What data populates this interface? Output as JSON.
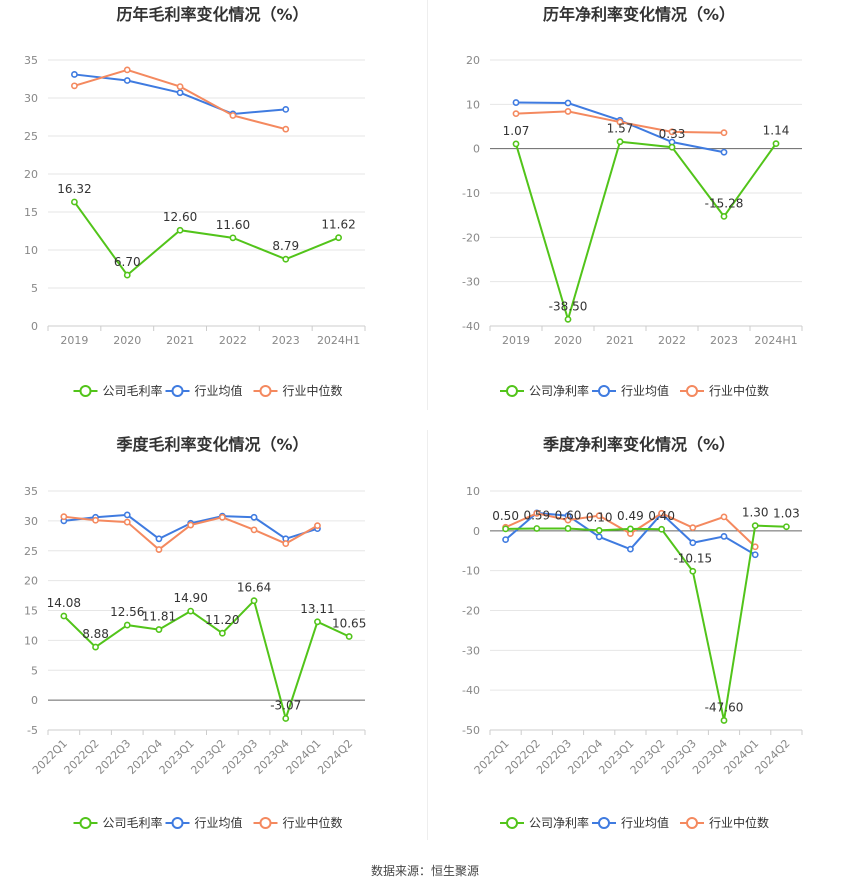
{
  "colors": {
    "company": "#52c41a",
    "industry_avg": "#3f7be0",
    "industry_median": "#f4895f",
    "grid": "#e6e6e6",
    "axis_text": "#888888",
    "title_text": "#333333",
    "label_text": "#333333"
  },
  "footer": {
    "source": "数据来源：恒生聚源"
  },
  "chart_data": [
    {
      "id": "annual-gross",
      "type": "line",
      "title": "历年毛利率变化情况（%）",
      "categories": [
        "2019",
        "2020",
        "2021",
        "2022",
        "2023",
        "2024H1"
      ],
      "ylim": [
        0,
        35
      ],
      "yticks": [
        0,
        5,
        10,
        15,
        20,
        25,
        30,
        35
      ],
      "rotate_xticks": false,
      "series": [
        {
          "name": "公司毛利率",
          "key": "company",
          "values": [
            16.32,
            6.7,
            12.6,
            11.6,
            8.79,
            11.62
          ],
          "labels": [
            "16.32",
            "6.70",
            "12.60",
            "11.60",
            "8.79",
            "11.62"
          ]
        },
        {
          "name": "行业均值",
          "key": "industry_avg",
          "values": [
            33.1,
            32.3,
            30.7,
            27.9,
            28.5,
            null
          ]
        },
        {
          "name": "行业中位数",
          "key": "industry_median",
          "values": [
            31.6,
            33.7,
            31.5,
            27.7,
            25.9,
            null
          ]
        }
      ],
      "legend": [
        "公司毛利率",
        "行业均值",
        "行业中位数"
      ],
      "legend_position": "bottom"
    },
    {
      "id": "annual-net",
      "type": "line",
      "title": "历年净利率变化情况（%）",
      "categories": [
        "2019",
        "2020",
        "2021",
        "2022",
        "2023",
        "2024H1"
      ],
      "ylim": [
        -40,
        20
      ],
      "yticks": [
        -40,
        -30,
        -20,
        -10,
        0,
        10,
        20
      ],
      "rotate_xticks": false,
      "series": [
        {
          "name": "公司净利率",
          "key": "company",
          "values": [
            1.07,
            -38.5,
            1.57,
            0.33,
            -15.28,
            1.14
          ],
          "labels": [
            "1.07",
            "-38.50",
            "1.57",
            "0.33",
            "-15.28",
            "1.14"
          ]
        },
        {
          "name": "行业均值",
          "key": "industry_avg",
          "values": [
            10.4,
            10.3,
            6.4,
            1.5,
            -0.8,
            null
          ]
        },
        {
          "name": "行业中位数",
          "key": "industry_median",
          "values": [
            7.9,
            8.4,
            6.0,
            3.8,
            3.6,
            null
          ]
        }
      ],
      "legend": [
        "公司净利率",
        "行业均值",
        "行业中位数"
      ],
      "legend_position": "bottom"
    },
    {
      "id": "quarterly-gross",
      "type": "line",
      "title": "季度毛利率变化情况（%）",
      "categories": [
        "2022Q1",
        "2022Q2",
        "2022Q3",
        "2022Q4",
        "2023Q1",
        "2023Q2",
        "2023Q3",
        "2023Q4",
        "2024Q1",
        "2024Q2"
      ],
      "ylim": [
        -5,
        35
      ],
      "yticks": [
        -5,
        0,
        5,
        10,
        15,
        20,
        25,
        30,
        35
      ],
      "rotate_xticks": true,
      "series": [
        {
          "name": "公司毛利率",
          "key": "company",
          "values": [
            14.08,
            8.88,
            12.56,
            11.81,
            14.9,
            11.2,
            16.64,
            -3.07,
            13.11,
            10.65
          ],
          "labels": [
            "14.08",
            "8.88",
            "12.56",
            "11.81",
            "14.90",
            "11.20",
            "16.64",
            "-3.07",
            "13.11",
            "10.65"
          ]
        },
        {
          "name": "行业均值",
          "key": "industry_avg",
          "values": [
            30.0,
            30.6,
            31.0,
            27.0,
            29.6,
            30.8,
            30.6,
            27.0,
            28.7,
            null
          ]
        },
        {
          "name": "行业中位数",
          "key": "industry_median",
          "values": [
            30.7,
            30.1,
            29.8,
            25.2,
            29.3,
            30.6,
            28.5,
            26.2,
            29.2,
            null
          ]
        }
      ],
      "legend": [
        "公司毛利率",
        "行业均值",
        "行业中位数"
      ],
      "legend_position": "bottom"
    },
    {
      "id": "quarterly-net",
      "type": "line",
      "title": "季度净利率变化情况（%）",
      "categories": [
        "2022Q1",
        "2022Q2",
        "2022Q3",
        "2022Q4",
        "2023Q1",
        "2023Q2",
        "2023Q3",
        "2023Q4",
        "2024Q1",
        "2024Q2"
      ],
      "ylim": [
        -50,
        10
      ],
      "yticks": [
        -50,
        -40,
        -30,
        -20,
        -10,
        0,
        10
      ],
      "rotate_xticks": true,
      "series": [
        {
          "name": "公司净利率",
          "key": "company",
          "values": [
            0.5,
            0.59,
            0.6,
            0.1,
            0.49,
            0.4,
            -10.15,
            -47.6,
            1.3,
            1.03
          ],
          "labels": [
            "0.50",
            "0.59",
            "0.60",
            "0.10",
            "0.49",
            "0.40",
            "-10.15",
            "-47.60",
            "1.30",
            "1.03"
          ]
        },
        {
          "name": "行业均值",
          "key": "industry_avg",
          "values": [
            -2.2,
            4.5,
            3.8,
            -1.5,
            -4.6,
            4.3,
            -3.0,
            -1.4,
            -6.0,
            null
          ]
        },
        {
          "name": "行业中位数",
          "key": "industry_median",
          "values": [
            0.9,
            4.4,
            2.7,
            3.8,
            -0.7,
            4.4,
            0.8,
            3.5,
            -4.0,
            null
          ]
        }
      ],
      "legend": [
        "公司净利率",
        "行业均值",
        "行业中位数"
      ],
      "legend_position": "bottom"
    }
  ]
}
